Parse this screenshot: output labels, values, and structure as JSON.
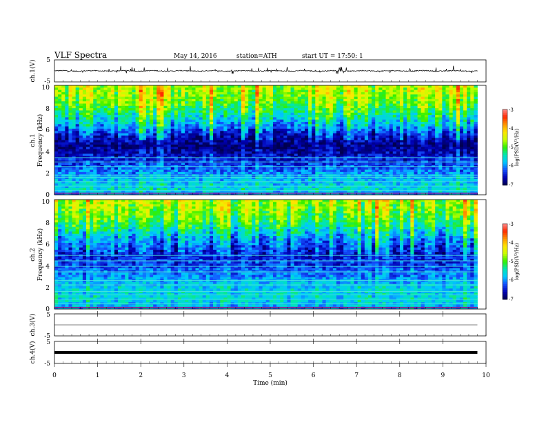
{
  "header": {
    "title": "VLF Spectra",
    "date": "May 14, 2016",
    "station": "station=ATH",
    "start": "start UT =  17:50: 1"
  },
  "chart_data": {
    "type": "heatmap",
    "title": "VLF Spectra",
    "x": {
      "label": "Time (min)",
      "range": [
        0,
        10
      ],
      "ticks": [
        "0",
        "1",
        "2",
        "3",
        "4",
        "5",
        "6",
        "7",
        "8",
        "9",
        "10"
      ]
    },
    "panels": [
      {
        "id": "ch1-waveform",
        "type": "line",
        "ylabel": "ch.1(V)",
        "ylim": [
          -5,
          5
        ],
        "yticks": [
          "5",
          "-5"
        ],
        "baseline": 0,
        "noise_amplitude": 0.4,
        "spike_amplitude": 3.5,
        "data_end_min": 9.8
      },
      {
        "id": "ch1-spectrogram",
        "type": "heatmap",
        "ylabel_lines": [
          "ch.1",
          "Frequency  (kHz)"
        ],
        "ylim": [
          0,
          10
        ],
        "yticks": [
          "0",
          "2",
          "4",
          "6",
          "8",
          "10"
        ],
        "colorbar": {
          "label": "log(PSD(V²/Hz)",
          "range": [
            -7,
            -3
          ],
          "ticks": [
            "-3",
            "-4",
            "-5",
            "-6",
            "-7"
          ],
          "colors": [
            "#000050",
            "#0000b4",
            "#1450ff",
            "#00c8ff",
            "#00e6b4",
            "#32f000",
            "#c8ff00",
            "#ffe600",
            "#ff9600",
            "#ff2800",
            "#ff8c8c"
          ]
        },
        "band_profile": [
          {
            "f": 10,
            "v": -4.6
          },
          {
            "f": 9,
            "v": -4.7
          },
          {
            "f": 8,
            "v": -5.0
          },
          {
            "f": 7,
            "v": -5.5
          },
          {
            "f": 6.2,
            "v": -5.9
          },
          {
            "f": 5.5,
            "v": -6.4
          },
          {
            "f": 4.5,
            "v": -6.8
          },
          {
            "f": 3.5,
            "v": -6.5
          },
          {
            "f": 2.5,
            "v": -6.2
          },
          {
            "f": 1.5,
            "v": -5.8
          },
          {
            "f": 0.5,
            "v": -5.6
          },
          {
            "f": 0,
            "v": -6.0
          }
        ],
        "lines_khz": [
          3.4,
          3.0,
          2.6,
          1.8,
          1.6,
          1.2,
          0.8,
          0.4
        ],
        "data_end_min": 9.8
      },
      {
        "id": "ch2-spectrogram",
        "type": "heatmap",
        "ylabel_lines": [
          "ch.2",
          "Frequency  (kHz)"
        ],
        "ylim": [
          0,
          10
        ],
        "yticks": [
          "0",
          "2",
          "4",
          "6",
          "8",
          "10"
        ],
        "colorbar": {
          "label": "log(PSD(V²/Hz)",
          "range": [
            -7,
            -3
          ],
          "ticks": [
            "-3",
            "-4",
            "-5",
            "-6",
            "-7"
          ],
          "colors": [
            "#000050",
            "#0000b4",
            "#1450ff",
            "#00c8ff",
            "#00e6b4",
            "#32f000",
            "#c8ff00",
            "#ffe600",
            "#ff9600",
            "#ff2800",
            "#ff8c8c"
          ]
        },
        "band_profile": [
          {
            "f": 10,
            "v": -4.6
          },
          {
            "f": 9,
            "v": -4.8
          },
          {
            "f": 8,
            "v": -5.1
          },
          {
            "f": 7,
            "v": -5.6
          },
          {
            "f": 6,
            "v": -6.1
          },
          {
            "f": 5,
            "v": -6.4
          },
          {
            "f": 4,
            "v": -6.3
          },
          {
            "f": 3,
            "v": -6.0
          },
          {
            "f": 2,
            "v": -5.7
          },
          {
            "f": 1,
            "v": -5.6
          },
          {
            "f": 0,
            "v": -5.9
          }
        ],
        "lines_khz": [
          4.9,
          4.4,
          3.9,
          3.4,
          2.6,
          2.2,
          1.6,
          1.3,
          0.9,
          0.5
        ],
        "data_end_min": 9.8
      },
      {
        "id": "ch3-waveform",
        "type": "line",
        "ylabel": "ch.3(V)",
        "ylim": [
          -5,
          5
        ],
        "yticks": [
          "5",
          "-5"
        ],
        "baseline": 0,
        "noise_amplitude": 0,
        "spike_amplitude": 0,
        "data_end_min": 9.8
      },
      {
        "id": "ch4-waveform",
        "type": "line",
        "ylabel": "ch.4(V)",
        "ylim": [
          -5,
          5
        ],
        "yticks": [
          "5",
          "-5"
        ],
        "baseline": 0,
        "noise_amplitude": 0,
        "spike_amplitude": 0,
        "data_end_min": 9.8
      }
    ]
  }
}
